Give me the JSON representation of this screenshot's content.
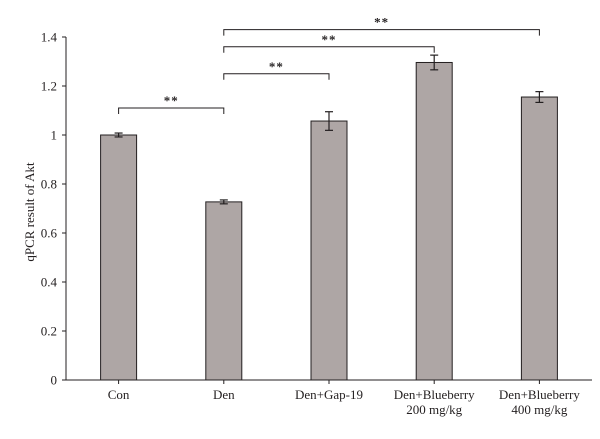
{
  "chart_data": {
    "type": "bar",
    "title": "",
    "xlabel": "",
    "ylabel": "qPCR result of Akt",
    "ylim": [
      0,
      1.4
    ],
    "yticks": [
      {
        "value": 0,
        "label": "0"
      },
      {
        "value": 0.2,
        "label": "0.2"
      },
      {
        "value": 0.4,
        "label": "0.4"
      },
      {
        "value": 0.6,
        "label": "0.6"
      },
      {
        "value": 0.8,
        "label": "0.8"
      },
      {
        "value": 1.0,
        "label": "1"
      },
      {
        "value": 1.2,
        "label": "1.2"
      },
      {
        "value": 1.4,
        "label": "1.4"
      }
    ],
    "categories": [
      [
        "Con"
      ],
      [
        "Den"
      ],
      [
        "Den+Gap-19"
      ],
      [
        "Den+Blueberry",
        "200 mg/kg"
      ],
      [
        "Den+Blueberry",
        "400 mg/kg"
      ]
    ],
    "values": [
      1.0,
      0.727,
      1.057,
      1.296,
      1.155
    ],
    "errors": [
      0.008,
      0.008,
      0.038,
      0.03,
      0.022
    ],
    "bar_color": "#aea6a5",
    "significance": [
      {
        "from": 0,
        "to": 1,
        "level": 1.11,
        "label": "**"
      },
      {
        "from": 1,
        "to": 2,
        "level": 1.25,
        "label": "**"
      },
      {
        "from": 1,
        "to": 3,
        "level": 1.36,
        "label": "**"
      },
      {
        "from": 1,
        "to": 4,
        "level": 1.43,
        "label": "**"
      }
    ],
    "grid": false,
    "legend": "none"
  }
}
